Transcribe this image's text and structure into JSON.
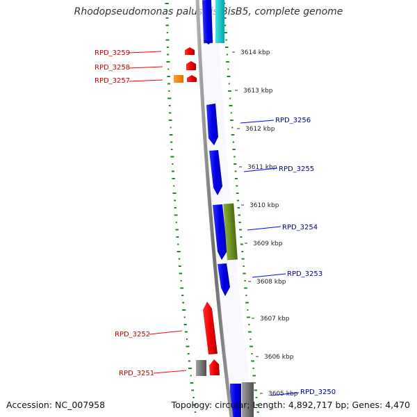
{
  "title": "Rhodopseudomonas palustris BisB5, complete genome",
  "footer": {
    "accession": "Accession: NC_007958",
    "summary": "Topology: circular; Length: 4,892,717 bp; Genes: 4,470"
  },
  "colors": {
    "backbone": "#808080",
    "forward_gene": "#ff0000",
    "reverse_gene": "#0000ff",
    "orange_gene": "#ff8c00",
    "olive_gene": "#6b8e23",
    "teal_gene": "#00c8c8",
    "gray_gene": "#707070",
    "gc_marks": "#1a8a1a",
    "forward_label": "#cc0000",
    "reverse_label": "#000099"
  },
  "ticks": [
    "3614 kbp",
    "3613 kbp",
    "3612 kbp",
    "3611 kbp",
    "3610 kbp",
    "3609 kbp",
    "3608 kbp",
    "3607 kbp",
    "3606 kbp",
    "3605 kbp"
  ],
  "gene_labels": [
    {
      "text": "RPD_3259",
      "strand": "forward"
    },
    {
      "text": "RPD_3258",
      "strand": "forward"
    },
    {
      "text": "RPD_3257",
      "strand": "forward"
    },
    {
      "text": "RPD_3256",
      "strand": "reverse"
    },
    {
      "text": "RPD_3255",
      "strand": "reverse"
    },
    {
      "text": "RPD_3254",
      "strand": "reverse"
    },
    {
      "text": "RPD_3253",
      "strand": "reverse"
    },
    {
      "text": "RPD_3252",
      "strand": "forward"
    },
    {
      "text": "RPD_3251",
      "strand": "forward"
    },
    {
      "text": "RPD_3250",
      "strand": "reverse"
    }
  ]
}
